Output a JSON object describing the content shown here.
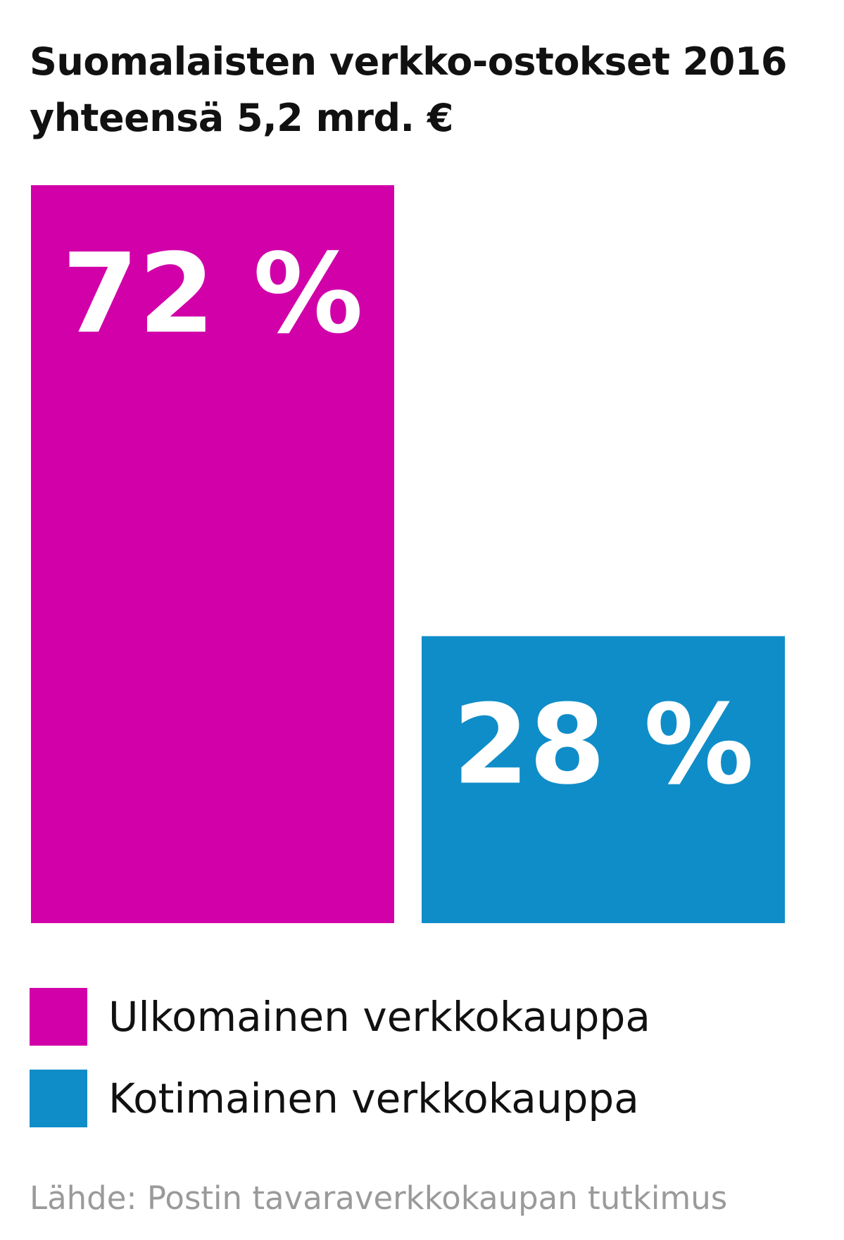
{
  "chart_data": {
    "type": "bar",
    "title_lines": [
      "Suomalaisten verkko-ostokset 2016",
      "yhteensä 5,2 mrd. €"
    ],
    "categories": [
      "Ulkomainen verkkokauppa",
      "Kotimainen verkkokauppa"
    ],
    "values": [
      72,
      28
    ],
    "data_labels": [
      "72 %",
      "28 %"
    ],
    "colors": [
      "#d100a8",
      "#0f8dc8"
    ],
    "unit": "%",
    "ylim": [
      0,
      72
    ],
    "grid": false,
    "legend_position": "bottom-left",
    "source": "Lähde: Postin tavaraverkkokaupan tutkimus"
  }
}
